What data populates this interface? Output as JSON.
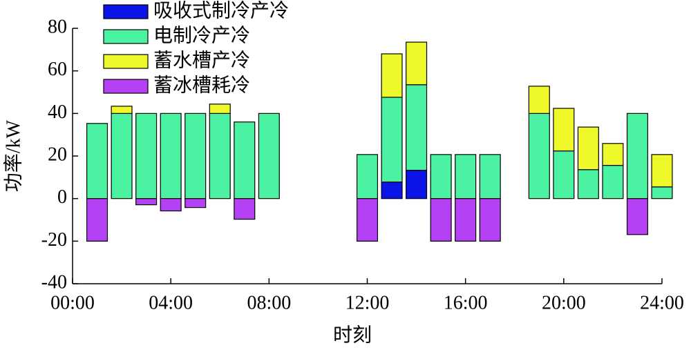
{
  "chart_data": {
    "type": "stacked_bar",
    "x_label": "时刻",
    "y_label": "功率/kW",
    "x": [
      1,
      2,
      3,
      4,
      5,
      6,
      7,
      8,
      9,
      10,
      11,
      12,
      13,
      14,
      15,
      16,
      17,
      18,
      19,
      20,
      21,
      22,
      23,
      24
    ],
    "xlim": [
      0,
      24
    ],
    "xticks": [
      {
        "value": 0,
        "label": "00:00"
      },
      {
        "value": 4,
        "label": "04:00"
      },
      {
        "value": 8,
        "label": "08:00"
      },
      {
        "value": 12,
        "label": "12:00"
      },
      {
        "value": 16,
        "label": "16:00"
      },
      {
        "value": 20,
        "label": "20:00"
      },
      {
        "value": 24,
        "label": "24:00"
      }
    ],
    "ylim": [
      -40,
      80
    ],
    "yticks": [
      -40,
      -20,
      0,
      20,
      40,
      60,
      80
    ],
    "series": [
      {
        "name": "吸收式制冷产冷",
        "color": "#0a14e6",
        "values": [
          0,
          0,
          0,
          0,
          0,
          0,
          0,
          0,
          0,
          0,
          0,
          0,
          7.8,
          13.3,
          0,
          0,
          0,
          0,
          0,
          0,
          0,
          0,
          0,
          0
        ]
      },
      {
        "name": "电制冷产冷",
        "color": "#4af2a1",
        "values": [
          35.3,
          40,
          40,
          40,
          40,
          40,
          36,
          40,
          0,
          0,
          0,
          20.7,
          39.8,
          40.2,
          20.7,
          20.7,
          20.7,
          0,
          40,
          22.4,
          13.6,
          15.6,
          40,
          5.5
        ]
      },
      {
        "name": "蓄水槽产冷",
        "color": "#eef82b",
        "values": [
          0,
          3.4,
          0,
          0,
          0,
          4.4,
          0,
          0,
          0,
          0,
          0,
          0,
          20.4,
          20,
          0,
          0,
          0,
          0,
          12.8,
          20,
          20,
          10.3,
          0,
          15.2
        ]
      },
      {
        "name": "蓄冰槽耗冷",
        "color": "#b541f5",
        "values": [
          -20,
          0,
          -2.9,
          -5.8,
          -4.2,
          0,
          -9.7,
          0,
          0,
          0,
          0,
          -20,
          0,
          0,
          -20,
          -20,
          -20,
          0,
          0,
          0,
          0,
          0,
          -16.9,
          0
        ]
      }
    ]
  }
}
